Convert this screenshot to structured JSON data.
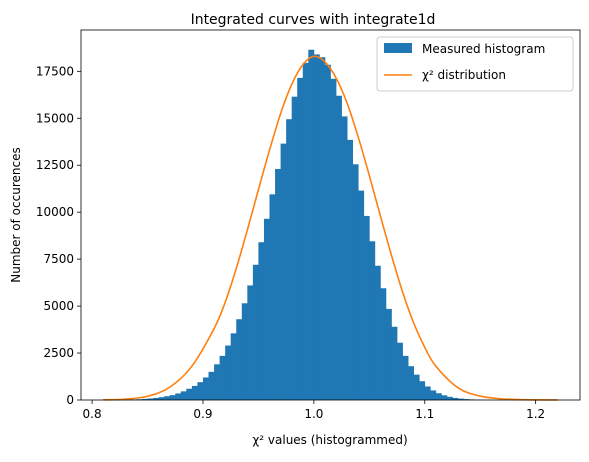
{
  "chart_data": {
    "type": "bar",
    "title": "Integrated curves with integrate1d",
    "xlabel": "χ² values (histogrammed)",
    "ylabel": "Number of occurences",
    "xlim": [
      0.79,
      1.24
    ],
    "ylim": [
      0,
      19700
    ],
    "x_ticks": [
      0.8,
      0.9,
      1.0,
      1.1,
      1.2
    ],
    "x_tick_labels": [
      "0.8",
      "0.9",
      "1.0",
      "1.1",
      "1.2"
    ],
    "y_ticks": [
      0,
      2500,
      5000,
      7500,
      10000,
      12500,
      15000,
      17500
    ],
    "y_tick_labels": [
      "0",
      "2500",
      "5000",
      "7500",
      "10000",
      "12500",
      "15000",
      "17500"
    ],
    "grid": false,
    "legend": "top-right",
    "colors": {
      "histogram": "#1f77b4",
      "curve": "#ff7f0e"
    },
    "series": [
      {
        "name": "Measured histogram",
        "kind": "histogram",
        "bin_width": 0.005,
        "bin_centers": [
          0.8325,
          0.8375,
          0.8425,
          0.8475,
          0.8525,
          0.8575,
          0.8625,
          0.8675,
          0.8725,
          0.8775,
          0.8825,
          0.8875,
          0.8925,
          0.8975,
          0.9025,
          0.9075,
          0.9125,
          0.9175,
          0.9225,
          0.9275,
          0.9325,
          0.9375,
          0.9425,
          0.9475,
          0.9525,
          0.9575,
          0.9625,
          0.9675,
          0.9725,
          0.9775,
          0.9825,
          0.9875,
          0.9925,
          0.9975,
          1.0025,
          1.0075,
          1.0125,
          1.0175,
          1.0225,
          1.0275,
          1.0325,
          1.0375,
          1.0425,
          1.0475,
          1.0525,
          1.0575,
          1.0625,
          1.0675,
          1.0725,
          1.0775,
          1.0825,
          1.0875,
          1.0925,
          1.0975,
          1.1025,
          1.1075,
          1.1125,
          1.1175,
          1.1225,
          1.1275,
          1.1325,
          1.1375,
          1.1425,
          1.1475,
          1.1525,
          1.1575,
          1.1625,
          1.1675,
          1.1725,
          1.1775,
          1.1825,
          1.1875,
          1.1925
        ],
        "counts": [
          20,
          30,
          40,
          60,
          80,
          110,
          150,
          200,
          260,
          350,
          460,
          600,
          750,
          950,
          1200,
          1500,
          1900,
          2350,
          2900,
          3550,
          4300,
          5150,
          6100,
          7200,
          8400,
          9650,
          10950,
          12300,
          13650,
          14950,
          16150,
          17150,
          17950,
          18650,
          18400,
          18250,
          17850,
          17100,
          16200,
          15100,
          13850,
          12550,
          11150,
          9800,
          8450,
          7150,
          5950,
          4850,
          3900,
          3050,
          2350,
          1800,
          1350,
          1000,
          720,
          510,
          360,
          250,
          170,
          110,
          75,
          50,
          32,
          20,
          13,
          8,
          5,
          3,
          2,
          1,
          1,
          0,
          0
        ]
      },
      {
        "name": "χ² distribution",
        "kind": "curve",
        "x": [
          0.81,
          0.83,
          0.85,
          0.87,
          0.89,
          0.91,
          0.92,
          0.93,
          0.94,
          0.95,
          0.96,
          0.97,
          0.98,
          0.99,
          1.0,
          1.01,
          1.02,
          1.03,
          1.04,
          1.05,
          1.06,
          1.07,
          1.08,
          1.09,
          1.1,
          1.11,
          1.13,
          1.15,
          1.17,
          1.19,
          1.22
        ],
        "y": [
          8,
          45,
          200,
          680,
          1800,
          3800,
          5200,
          7000,
          9050,
          11200,
          13300,
          15250,
          16800,
          17850,
          18300,
          18000,
          17150,
          15800,
          14000,
          11950,
          9800,
          7700,
          5750,
          4100,
          2800,
          1800,
          650,
          210,
          60,
          15,
          2
        ]
      }
    ]
  }
}
